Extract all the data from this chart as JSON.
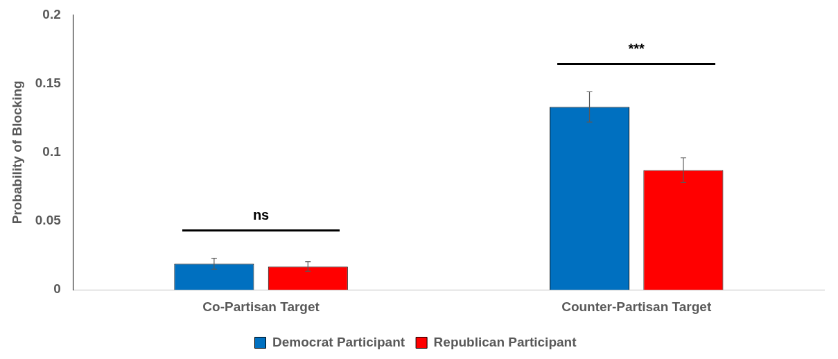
{
  "chart_data": {
    "type": "bar",
    "ylabel": "Probability of Blocking",
    "categories": [
      "Co-Partisan Target",
      "Counter-Partisan Target"
    ],
    "series": [
      {
        "name": "Democrat Participant",
        "color": "#0070c0",
        "values": [
          0.019,
          0.133
        ],
        "errors": [
          0.004,
          0.011
        ]
      },
      {
        "name": "Republican Participant",
        "color": "#ff0000",
        "values": [
          0.017,
          0.087
        ],
        "errors": [
          0.0035,
          0.009
        ]
      }
    ],
    "ylim": [
      0,
      0.2
    ],
    "yticks": [
      0,
      0.05,
      0.1,
      0.15,
      0.2
    ],
    "grid": false,
    "legend": "bottom",
    "annotations": [
      "ns",
      "***"
    ]
  }
}
